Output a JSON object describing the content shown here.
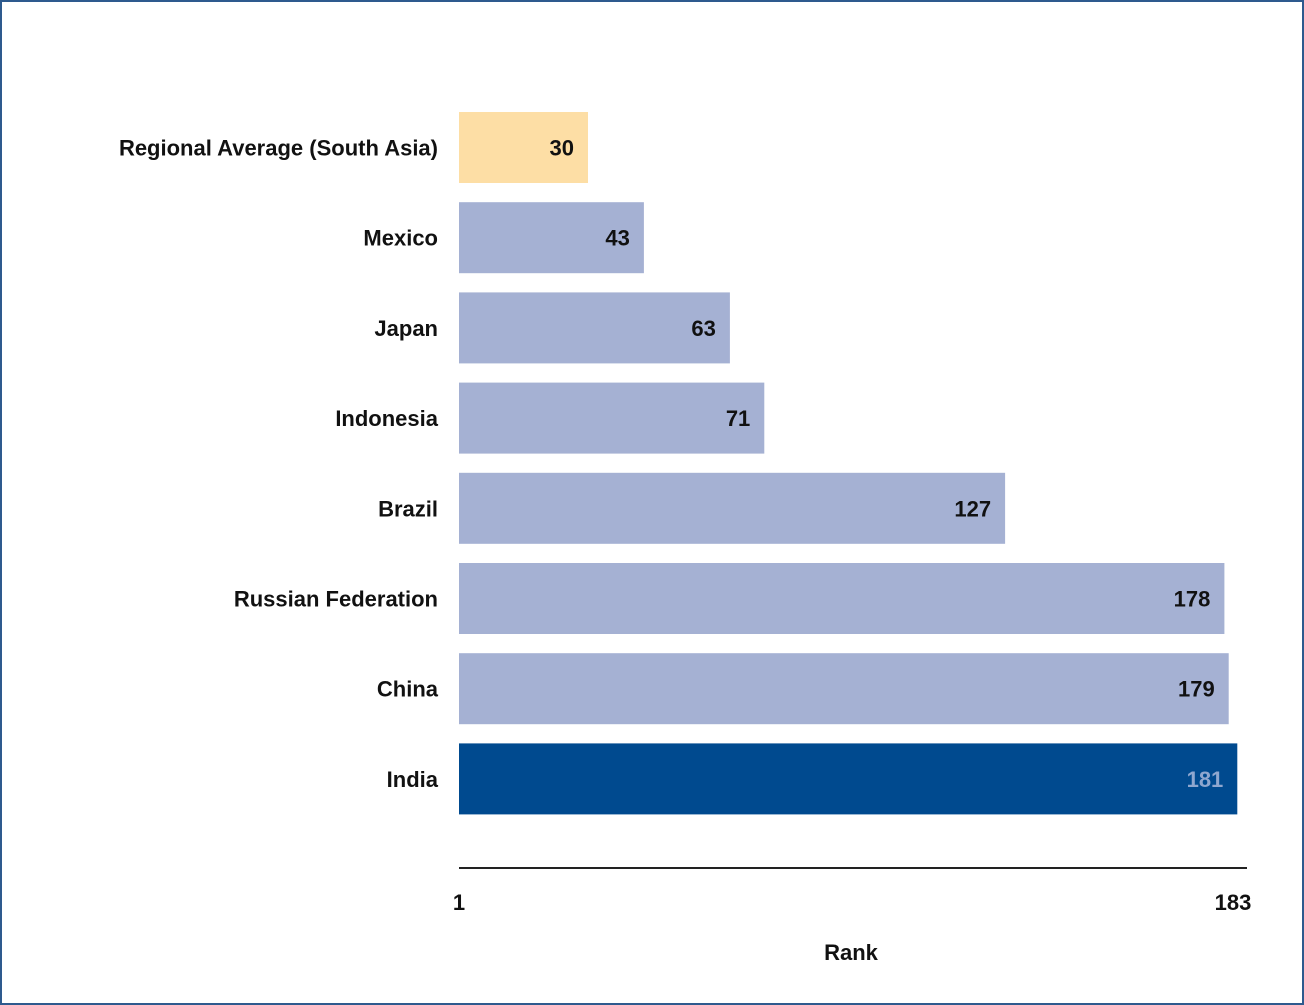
{
  "chart_data": {
    "type": "bar",
    "orientation": "horizontal",
    "categories": [
      "Regional Average (South Asia)",
      "Mexico",
      "Japan",
      "Indonesia",
      "Brazil",
      "Russian Federation",
      "China",
      "India"
    ],
    "values": [
      30,
      43,
      63,
      71,
      127,
      178,
      179,
      181
    ],
    "xlabel": "Rank",
    "xlim": [
      1,
      183
    ],
    "x_ticks": [
      "1",
      "183"
    ],
    "grid": false,
    "legend": "none",
    "colors": {
      "highlight_regional": "#fddea5",
      "default_bar": "#a5b1d3",
      "highlight_subject": "#004a8f",
      "label_dark": "#111111",
      "label_on_dark": "#8fa7cf",
      "frame_border": "#2e5a8e"
    }
  }
}
